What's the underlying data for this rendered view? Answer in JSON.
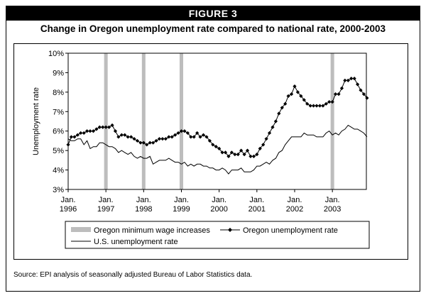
{
  "figure_label": "FIGURE 3",
  "footnote": "Source: EPI analysis of seasonally adjusted Bureau of Labor Statistics data.",
  "colors": {
    "oregon": "#000000",
    "us": "#000000",
    "minwage_bar": "#bdbdbd"
  },
  "chart_data": {
    "type": "line",
    "title": "Change in Oregon unemployment rate compared to national rate, 2000-2003",
    "ylabel": "Unemployment rate",
    "xlabel": "",
    "ylim": [
      3,
      10
    ],
    "y_ticks": [
      "3%",
      "4%",
      "5%",
      "6%",
      "7%",
      "8%",
      "9%",
      "10%"
    ],
    "x_range": [
      1996.0,
      2003.9
    ],
    "x_ticks": [
      {
        "value": 1996,
        "line1": "Jan.",
        "line2": "1996"
      },
      {
        "value": 1997,
        "line1": "Jan.",
        "line2": "1997"
      },
      {
        "value": 1998,
        "line1": "Jan.",
        "line2": "1998"
      },
      {
        "value": 1999,
        "line1": "Jan.",
        "line2": "1999"
      },
      {
        "value": 2000,
        "line1": "Jan.",
        "line2": "2000"
      },
      {
        "value": 2001,
        "line1": "Jan.",
        "line2": "2001"
      },
      {
        "value": 2002,
        "line1": "Jan.",
        "line2": "2002"
      },
      {
        "value": 2003,
        "line1": "Jan.",
        "line2": "2003"
      }
    ],
    "minimum_wage_increases": [
      1997.0,
      1998.0,
      1999.0,
      2003.0
    ],
    "series": [
      {
        "name": "Oregon unemployment rate",
        "marker": "diamond",
        "x": [
          1996.0,
          1996.083,
          1996.167,
          1996.25,
          1996.333,
          1996.417,
          1996.5,
          1996.583,
          1996.667,
          1996.75,
          1996.833,
          1996.917,
          1997.0,
          1997.083,
          1997.167,
          1997.25,
          1997.333,
          1997.417,
          1997.5,
          1997.583,
          1997.667,
          1997.75,
          1997.833,
          1997.917,
          1998.0,
          1998.083,
          1998.167,
          1998.25,
          1998.333,
          1998.417,
          1998.5,
          1998.583,
          1998.667,
          1998.75,
          1998.833,
          1998.917,
          1999.0,
          1999.083,
          1999.167,
          1999.25,
          1999.333,
          1999.417,
          1999.5,
          1999.583,
          1999.667,
          1999.75,
          1999.833,
          1999.917,
          2000.0,
          2000.083,
          2000.167,
          2000.25,
          2000.333,
          2000.417,
          2000.5,
          2000.583,
          2000.667,
          2000.75,
          2000.833,
          2000.917,
          2001.0,
          2001.083,
          2001.167,
          2001.25,
          2001.333,
          2001.417,
          2001.5,
          2001.583,
          2001.667,
          2001.75,
          2001.833,
          2001.917,
          2002.0,
          2002.083,
          2002.167,
          2002.25,
          2002.333,
          2002.417,
          2002.5,
          2002.583,
          2002.667,
          2002.75,
          2002.833,
          2002.917,
          2003.0,
          2003.083,
          2003.167,
          2003.25,
          2003.333,
          2003.417,
          2003.5,
          2003.583,
          2003.667,
          2003.75,
          2003.833,
          2003.917
        ],
        "values": [
          5.3,
          5.7,
          5.7,
          5.8,
          5.9,
          5.9,
          6.0,
          6.0,
          6.0,
          6.1,
          6.2,
          6.2,
          6.2,
          6.2,
          6.3,
          6.0,
          5.7,
          5.8,
          5.8,
          5.7,
          5.7,
          5.6,
          5.5,
          5.4,
          5.4,
          5.3,
          5.4,
          5.4,
          5.5,
          5.6,
          5.6,
          5.6,
          5.7,
          5.7,
          5.8,
          5.9,
          6.0,
          6.0,
          5.9,
          5.7,
          5.7,
          5.9,
          5.7,
          5.8,
          5.7,
          5.5,
          5.3,
          5.2,
          5.1,
          4.9,
          4.9,
          4.7,
          4.9,
          4.8,
          4.8,
          5.0,
          4.8,
          5.0,
          4.7,
          4.7,
          4.8,
          5.1,
          5.3,
          5.6,
          5.9,
          6.2,
          6.5,
          6.9,
          7.2,
          7.4,
          7.8,
          7.9,
          8.3,
          8.0,
          7.8,
          7.6,
          7.4,
          7.3,
          7.3,
          7.3,
          7.3,
          7.3,
          7.4,
          7.5,
          7.5,
          7.9,
          7.9,
          8.2,
          8.6,
          8.6,
          8.7,
          8.7,
          8.4,
          8.1,
          7.9,
          7.7
        ]
      },
      {
        "name": "U.S. unemployment rate",
        "marker": "none",
        "x": [
          1996.0,
          1996.083,
          1996.167,
          1996.25,
          1996.333,
          1996.417,
          1996.5,
          1996.583,
          1996.667,
          1996.75,
          1996.833,
          1996.917,
          1997.0,
          1997.083,
          1997.167,
          1997.25,
          1997.333,
          1997.417,
          1997.5,
          1997.583,
          1997.667,
          1997.75,
          1997.833,
          1997.917,
          1998.0,
          1998.083,
          1998.167,
          1998.25,
          1998.333,
          1998.417,
          1998.5,
          1998.583,
          1998.667,
          1998.75,
          1998.833,
          1998.917,
          1999.0,
          1999.083,
          1999.167,
          1999.25,
          1999.333,
          1999.417,
          1999.5,
          1999.583,
          1999.667,
          1999.75,
          1999.833,
          1999.917,
          2000.0,
          2000.083,
          2000.167,
          2000.25,
          2000.333,
          2000.417,
          2000.5,
          2000.583,
          2000.667,
          2000.75,
          2000.833,
          2000.917,
          2001.0,
          2001.083,
          2001.167,
          2001.25,
          2001.333,
          2001.417,
          2001.5,
          2001.583,
          2001.667,
          2001.75,
          2001.833,
          2001.917,
          2002.0,
          2002.083,
          2002.167,
          2002.25,
          2002.333,
          2002.417,
          2002.5,
          2002.583,
          2002.667,
          2002.75,
          2002.833,
          2002.917,
          2003.0,
          2003.083,
          2003.167,
          2003.25,
          2003.333,
          2003.417,
          2003.5,
          2003.583,
          2003.667,
          2003.75,
          2003.833,
          2003.917
        ],
        "values": [
          5.6,
          5.5,
          5.5,
          5.6,
          5.6,
          5.3,
          5.5,
          5.1,
          5.2,
          5.2,
          5.4,
          5.4,
          5.3,
          5.2,
          5.2,
          5.1,
          4.9,
          5.0,
          4.9,
          4.8,
          4.9,
          4.7,
          4.6,
          4.7,
          4.6,
          4.6,
          4.7,
          4.3,
          4.4,
          4.5,
          4.5,
          4.5,
          4.6,
          4.5,
          4.4,
          4.4,
          4.3,
          4.4,
          4.2,
          4.3,
          4.2,
          4.3,
          4.3,
          4.2,
          4.2,
          4.1,
          4.1,
          4.0,
          4.0,
          4.1,
          4.0,
          3.8,
          4.0,
          4.0,
          4.0,
          4.1,
          3.9,
          3.9,
          3.9,
          4.0,
          4.2,
          4.2,
          4.3,
          4.4,
          4.3,
          4.5,
          4.6,
          4.9,
          5.0,
          5.3,
          5.5,
          5.7,
          5.7,
          5.7,
          5.7,
          5.9,
          5.8,
          5.8,
          5.8,
          5.7,
          5.7,
          5.7,
          5.9,
          6.0,
          5.8,
          5.9,
          5.8,
          6.0,
          6.1,
          6.3,
          6.2,
          6.1,
          6.1,
          6.0,
          5.9,
          5.7
        ]
      }
    ],
    "legend": {
      "position": "bottom",
      "items": [
        {
          "label": "Oregon minimum wage increases",
          "kind": "bar"
        },
        {
          "label": "Oregon unemployment rate",
          "kind": "line-diamond"
        },
        {
          "label": "U.S. unemployment rate",
          "kind": "line"
        }
      ]
    }
  }
}
